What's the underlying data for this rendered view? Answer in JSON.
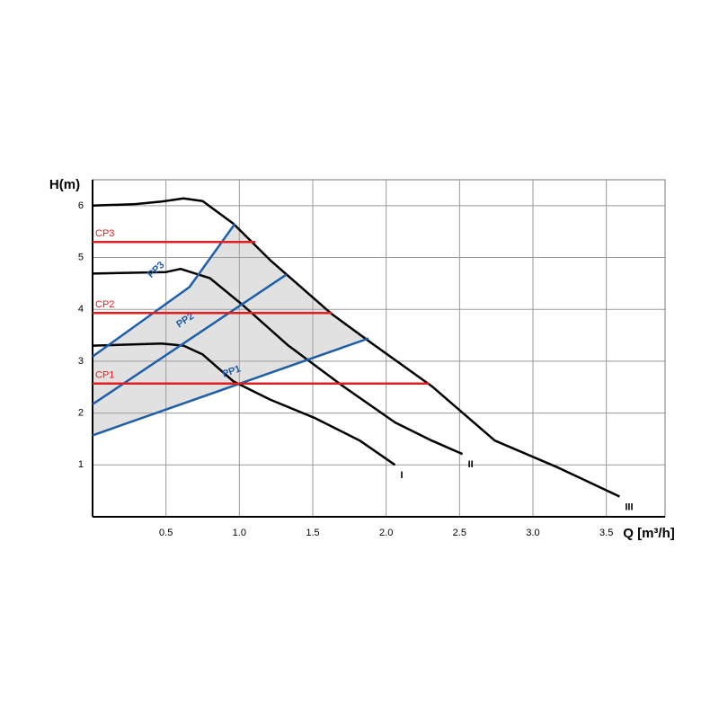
{
  "chart_data": {
    "type": "line",
    "y_label": "H(m)",
    "x_label": "Q [m³/h]",
    "xlim": [
      0,
      3.9
    ],
    "ylim": [
      0,
      6.5
    ],
    "xticks": [
      0.5,
      {
        "value": 1,
        "label": "1.0"
      },
      1.5,
      {
        "value": 2,
        "label": "2.0"
      },
      2.5,
      {
        "value": 3,
        "label": "3.0"
      },
      3.5
    ],
    "yticks": [
      1,
      2,
      3,
      4,
      5,
      6
    ],
    "grid": true,
    "series": [
      {
        "name": "III",
        "color": "#000000",
        "x": [
          0,
          0.29,
          0.47,
          0.62,
          0.75,
          0.96,
          1.21,
          1.63,
          1.88,
          2.31,
          2.74,
          3.17,
          3.59
        ],
        "values": [
          6.0,
          6.03,
          6.08,
          6.14,
          6.09,
          5.65,
          4.95,
          3.91,
          3.39,
          2.52,
          1.47,
          0.95,
          0.39
        ]
      },
      {
        "name": "II",
        "color": "#000000",
        "x": [
          0,
          0.5,
          0.6,
          0.8,
          1.02,
          1.33,
          1.7,
          2.06,
          2.31,
          2.52
        ],
        "values": [
          4.69,
          4.72,
          4.78,
          4.6,
          4.09,
          3.31,
          2.53,
          1.82,
          1.47,
          1.21
        ]
      },
      {
        "name": "I",
        "color": "#000000",
        "x": [
          0,
          0.47,
          0.62,
          0.75,
          0.96,
          1.21,
          1.51,
          1.82,
          2.06
        ],
        "values": [
          3.3,
          3.34,
          3.3,
          3.13,
          2.61,
          2.26,
          1.91,
          1.47,
          1.0
        ]
      },
      {
        "name": "PP3",
        "color": "#1f5fa8",
        "x": [
          0,
          0.66,
          0.97
        ],
        "values": [
          3.09,
          4.43,
          5.65
        ]
      },
      {
        "name": "PP2",
        "color": "#1f5fa8",
        "x": [
          0,
          1.32
        ],
        "values": [
          2.17,
          4.67
        ]
      },
      {
        "name": "PP1",
        "color": "#1f5fa8",
        "x": [
          0,
          1.88
        ],
        "values": [
          1.57,
          3.44
        ]
      },
      {
        "name": "CP3",
        "color": "#e02020",
        "x": [
          0,
          1.11
        ],
        "values": [
          5.3,
          5.3
        ]
      },
      {
        "name": "CP2",
        "color": "#e02020",
        "x": [
          0,
          1.63
        ],
        "values": [
          3.93,
          3.93
        ]
      },
      {
        "name": "CP1",
        "color": "#e02020",
        "x": [
          0,
          2.29
        ],
        "values": [
          2.57,
          2.57
        ]
      }
    ]
  }
}
